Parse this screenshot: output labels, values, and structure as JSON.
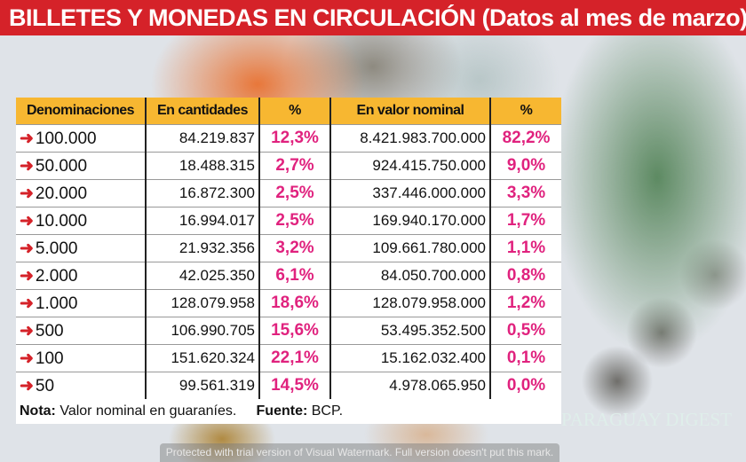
{
  "title": {
    "main": "BILLETES Y MONEDAS EN CIRCULACIÓN",
    "sub": "(Datos al mes de  marzo)"
  },
  "table": {
    "headers": [
      "Denominaciones",
      "En cantidades",
      "%",
      "En valor nominal",
      "%"
    ],
    "rows": [
      {
        "denom": "100.000",
        "cantidad": "84.219.837",
        "pct_cant": "12,3%",
        "valor": "8.421.983.700.000",
        "pct_valor": "82,2%"
      },
      {
        "denom": "50.000",
        "cantidad": "18.488.315",
        "pct_cant": "2,7%",
        "valor": "924.415.750.000",
        "pct_valor": "9,0%"
      },
      {
        "denom": "20.000",
        "cantidad": "16.872.300",
        "pct_cant": "2,5%",
        "valor": "337.446.000.000",
        "pct_valor": "3,3%"
      },
      {
        "denom": "10.000",
        "cantidad": "16.994.017",
        "pct_cant": "2,5%",
        "valor": "169.940.170.000",
        "pct_valor": "1,7%"
      },
      {
        "denom": "5.000",
        "cantidad": "21.932.356",
        "pct_cant": "3,2%",
        "valor": "109.661.780.000",
        "pct_valor": "1,1%"
      },
      {
        "denom": "2.000",
        "cantidad": "42.025.350",
        "pct_cant": "6,1%",
        "valor": "84.050.700.000",
        "pct_valor": "0,8%"
      },
      {
        "denom": "1.000",
        "cantidad": "128.079.958",
        "pct_cant": "18,6%",
        "valor": "128.079.958.000",
        "pct_valor": "1,2%"
      },
      {
        "denom": "500",
        "cantidad": "106.990.705",
        "pct_cant": "15,6%",
        "valor": "53.495.352.500",
        "pct_valor": "0,5%"
      },
      {
        "denom": "100",
        "cantidad": "151.620.324",
        "pct_cant": "22,1%",
        "valor": "15.162.032.400",
        "pct_valor": "0,1%"
      },
      {
        "denom": "50",
        "cantidad": "99.561.319",
        "pct_cant": "14,5%",
        "valor": "4.978.065.950",
        "pct_valor": "0,0%"
      }
    ]
  },
  "note": {
    "label": "Nota:",
    "text": "Valor nominal en guaraníes.",
    "source_label": "Fuente:",
    "source": "BCP."
  },
  "watermark": "PARAGUAY DIGEST",
  "trial_notice": "Protected with trial version of Visual Watermark. Full version doesn't put this mark.",
  "colors": {
    "title_bg": "#d52229",
    "header_bg": "#f7b731",
    "pct": "#e0227e",
    "arrow": "#d52229"
  }
}
